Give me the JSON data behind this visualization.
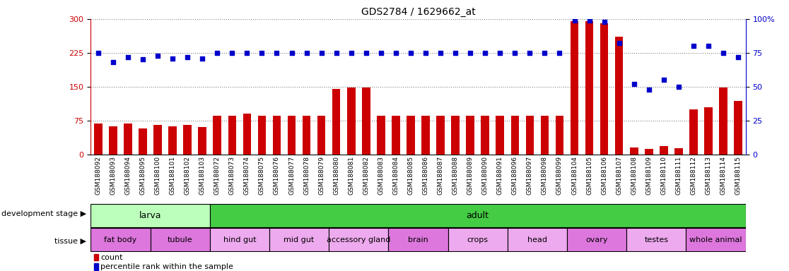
{
  "title": "GDS2784 / 1629662_at",
  "samples": [
    "GSM188092",
    "GSM188093",
    "GSM188094",
    "GSM188095",
    "GSM188100",
    "GSM188101",
    "GSM188102",
    "GSM188103",
    "GSM188072",
    "GSM188073",
    "GSM188074",
    "GSM188075",
    "GSM188076",
    "GSM188077",
    "GSM188078",
    "GSM188079",
    "GSM188080",
    "GSM188081",
    "GSM188082",
    "GSM188083",
    "GSM188084",
    "GSM188085",
    "GSM188086",
    "GSM188087",
    "GSM188088",
    "GSM188089",
    "GSM188090",
    "GSM188091",
    "GSM188096",
    "GSM188097",
    "GSM188098",
    "GSM188099",
    "GSM188104",
    "GSM188105",
    "GSM188106",
    "GSM188107",
    "GSM188108",
    "GSM188109",
    "GSM188110",
    "GSM188111",
    "GSM188112",
    "GSM188113",
    "GSM188114",
    "GSM188115"
  ],
  "count_values": [
    68,
    62,
    68,
    58,
    66,
    63,
    65,
    60,
    85,
    85,
    90,
    85,
    85,
    85,
    85,
    85,
    145,
    148,
    148,
    85,
    85,
    85,
    85,
    85,
    85,
    85,
    85,
    85,
    85,
    85,
    85,
    85,
    295,
    295,
    290,
    260,
    15,
    12,
    18,
    14,
    100,
    105,
    148,
    118
  ],
  "percentile_values": [
    75,
    68,
    72,
    70,
    73,
    71,
    72,
    71,
    75,
    75,
    75,
    75,
    75,
    75,
    75,
    75,
    75,
    75,
    75,
    75,
    75,
    75,
    75,
    75,
    75,
    75,
    75,
    75,
    75,
    75,
    75,
    75,
    99,
    99,
    98,
    82,
    52,
    48,
    55,
    50,
    80,
    80,
    75,
    72
  ],
  "ylim_left": [
    0,
    300
  ],
  "ylim_right": [
    0,
    100
  ],
  "yticks_left": [
    0,
    75,
    150,
    225,
    300
  ],
  "yticks_right": [
    0,
    25,
    50,
    75,
    100
  ],
  "bar_color": "#cc0000",
  "dot_color": "#0000cc",
  "development_stages": [
    {
      "label": "larva",
      "start": 0,
      "end": 8,
      "color": "#bbffbb"
    },
    {
      "label": "adult",
      "start": 8,
      "end": 44,
      "color": "#44cc44"
    }
  ],
  "tissues": [
    {
      "label": "fat body",
      "start": 0,
      "end": 4,
      "color": "#dd77dd"
    },
    {
      "label": "tubule",
      "start": 4,
      "end": 8,
      "color": "#dd77dd"
    },
    {
      "label": "hind gut",
      "start": 8,
      "end": 12,
      "color": "#eeaaee"
    },
    {
      "label": "mid gut",
      "start": 12,
      "end": 16,
      "color": "#eeaaee"
    },
    {
      "label": "accessory gland",
      "start": 16,
      "end": 20,
      "color": "#eeaaee"
    },
    {
      "label": "brain",
      "start": 20,
      "end": 24,
      "color": "#dd77dd"
    },
    {
      "label": "crops",
      "start": 24,
      "end": 28,
      "color": "#eeaaee"
    },
    {
      "label": "head",
      "start": 28,
      "end": 32,
      "color": "#eeaaee"
    },
    {
      "label": "ovary",
      "start": 32,
      "end": 36,
      "color": "#dd77dd"
    },
    {
      "label": "testes",
      "start": 36,
      "end": 40,
      "color": "#eeaaee"
    },
    {
      "label": "whole animal",
      "start": 40,
      "end": 44,
      "color": "#dd77dd"
    }
  ],
  "bg_color": "#ffffff",
  "label_color_left": "#cc0000",
  "label_color_right": "#0000cc",
  "left_labels": [
    "development stage",
    "tissue"
  ],
  "left_arrow_label": true
}
